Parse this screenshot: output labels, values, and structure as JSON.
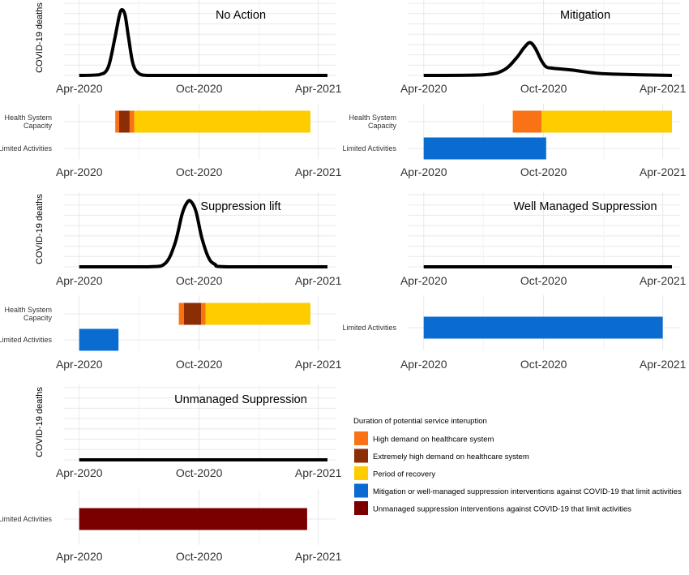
{
  "colors": {
    "high_demand": "#f97316",
    "extremely_high": "#8b2e06",
    "recovery": "#ffcc00",
    "mitigation": "#0a6bd1",
    "unmanaged": "#7a0000",
    "curve": "#000000",
    "grid_major": "#e8e8e8",
    "grid_minor": "#f3f3f3"
  },
  "legend": {
    "title": "Duration of potential service interuption",
    "items": [
      {
        "label": "High demand on healthcare system",
        "color_key": "high_demand"
      },
      {
        "label": "Extremely high demand on healthcare system",
        "color_key": "extremely_high"
      },
      {
        "label": "Period of recovery",
        "color_key": "recovery"
      },
      {
        "label": "Mitigation or well-managed suppression interventions against COVID-19 that limit activities",
        "color_key": "mitigation"
      },
      {
        "label": "Unmanaged suppression interventions against COVID-19 that limit activities",
        "color_key": "unmanaged"
      }
    ]
  },
  "chart_data": [
    {
      "type": "line",
      "title": "No Action",
      "ylabel": "COVID-19 deaths",
      "x_ticks": [
        "Apr-2020",
        "Oct-2020",
        "Apr-2021"
      ],
      "xlim": [
        "2020-03-15",
        "2021-04-15"
      ],
      "ylim": [
        0,
        1.05
      ],
      "x": [
        "2020-04-01",
        "2020-05-01",
        "2020-05-15",
        "2020-05-25",
        "2020-06-01",
        "2020-06-05",
        "2020-06-10",
        "2020-06-15",
        "2020-06-22",
        "2020-07-01",
        "2020-07-15",
        "2020-08-15",
        "2021-04-15"
      ],
      "y": [
        0,
        0.01,
        0.12,
        0.55,
        0.9,
        1.0,
        0.92,
        0.6,
        0.18,
        0.03,
        0,
        0,
        0
      ],
      "timeline": {
        "rows": [
          "Health System Capacity",
          "Limited Activities"
        ],
        "x_ticks": [
          "Apr-2020",
          "Oct-2020",
          "Apr-2021"
        ],
        "segments": [
          {
            "row": "Health System Capacity",
            "start": "2020-05-26",
            "end": "2020-06-01",
            "color_key": "high_demand"
          },
          {
            "row": "Health System Capacity",
            "start": "2020-06-01",
            "end": "2020-06-17",
            "color_key": "extremely_high"
          },
          {
            "row": "Health System Capacity",
            "start": "2020-06-17",
            "end": "2020-06-24",
            "color_key": "high_demand"
          },
          {
            "row": "Health System Capacity",
            "start": "2020-06-24",
            "end": "2021-03-20",
            "color_key": "recovery"
          }
        ]
      }
    },
    {
      "type": "line",
      "title": "Mitigation",
      "ylabel": "",
      "x_ticks": [
        "Apr-2020",
        "Oct-2020",
        "Apr-2021"
      ],
      "xlim": [
        "2020-03-15",
        "2021-04-15"
      ],
      "ylim": [
        0,
        1.05
      ],
      "x": [
        "2020-04-01",
        "2020-07-01",
        "2020-08-01",
        "2020-08-20",
        "2020-09-01",
        "2020-09-10",
        "2020-09-18",
        "2020-09-28",
        "2020-10-05",
        "2020-10-15",
        "2020-11-15",
        "2020-12-15",
        "2021-01-15",
        "2021-04-15"
      ],
      "y": [
        0,
        0.01,
        0.08,
        0.26,
        0.42,
        0.5,
        0.42,
        0.22,
        0.13,
        0.11,
        0.08,
        0.04,
        0.02,
        0
      ],
      "timeline": {
        "rows": [
          "Health System Capacity",
          "Limited Activities"
        ],
        "x_ticks": [
          "Apr-2020",
          "Oct-2020",
          "Apr-2021"
        ],
        "segments": [
          {
            "row": "Health System Capacity",
            "start": "2020-08-15",
            "end": "2020-09-28",
            "color_key": "high_demand"
          },
          {
            "row": "Health System Capacity",
            "start": "2020-09-28",
            "end": "2021-04-15",
            "color_key": "recovery"
          },
          {
            "row": "Limited Activities",
            "start": "2020-04-01",
            "end": "2020-10-05",
            "color_key": "mitigation"
          }
        ]
      }
    },
    {
      "type": "line",
      "title": "Suppression lift",
      "ylabel": "COVID-19 deaths",
      "x_ticks": [
        "Apr-2020",
        "Oct-2020",
        "Apr-2021"
      ],
      "xlim": [
        "2020-03-15",
        "2021-04-15"
      ],
      "ylim": [
        0,
        1.05
      ],
      "x": [
        "2020-04-01",
        "2020-07-15",
        "2020-08-10",
        "2020-08-25",
        "2020-09-05",
        "2020-09-12",
        "2020-09-18",
        "2020-09-26",
        "2020-10-05",
        "2020-10-15",
        "2020-10-25",
        "2020-11-15",
        "2021-04-15"
      ],
      "y": [
        0,
        0,
        0.05,
        0.35,
        0.8,
        0.97,
        1.0,
        0.85,
        0.45,
        0.15,
        0.04,
        0,
        0
      ],
      "timeline": {
        "rows": [
          "Health System Capacity",
          "Limited Activities"
        ],
        "x_ticks": [
          "Apr-2020",
          "Oct-2020",
          "Apr-2021"
        ],
        "segments": [
          {
            "row": "Health System Capacity",
            "start": "2020-08-31",
            "end": "2020-09-08",
            "color_key": "high_demand"
          },
          {
            "row": "Health System Capacity",
            "start": "2020-09-08",
            "end": "2020-10-04",
            "color_key": "extremely_high"
          },
          {
            "row": "Health System Capacity",
            "start": "2020-10-04",
            "end": "2020-10-11",
            "color_key": "high_demand"
          },
          {
            "row": "Health System Capacity",
            "start": "2020-10-11",
            "end": "2021-03-20",
            "color_key": "recovery"
          },
          {
            "row": "Limited Activities",
            "start": "2020-04-01",
            "end": "2020-05-31",
            "color_key": "mitigation"
          }
        ]
      }
    },
    {
      "type": "line",
      "title": "Well Managed Suppression",
      "ylabel": "",
      "x_ticks": [
        "Apr-2020",
        "Oct-2020",
        "Apr-2021"
      ],
      "xlim": [
        "2020-03-15",
        "2021-04-15"
      ],
      "ylim": [
        0,
        1.05
      ],
      "x": [
        "2020-04-01",
        "2021-04-15"
      ],
      "y": [
        0,
        0
      ],
      "timeline": {
        "rows": [
          "Limited Activities"
        ],
        "x_ticks": [
          "Apr-2020",
          "Oct-2020",
          "Apr-2021"
        ],
        "segments": [
          {
            "row": "Limited Activities",
            "start": "2020-04-01",
            "end": "2021-04-01",
            "color_key": "mitigation"
          }
        ]
      }
    },
    {
      "type": "line",
      "title": "Unmanaged Suppression",
      "ylabel": "COVID-19 deaths",
      "x_ticks": [
        "Apr-2020",
        "Oct-2020",
        "Apr-2021"
      ],
      "xlim": [
        "2020-03-15",
        "2021-04-15"
      ],
      "ylim": [
        0,
        1.05
      ],
      "x": [
        "2020-04-01",
        "2021-04-15"
      ],
      "y": [
        0,
        0
      ],
      "timeline": {
        "rows": [
          "Limited Activities"
        ],
        "x_ticks": [
          "Apr-2020",
          "Oct-2020",
          "Apr-2021"
        ],
        "segments": [
          {
            "row": "Limited Activities",
            "start": "2020-04-01",
            "end": "2021-03-15",
            "color_key": "unmanaged"
          }
        ]
      }
    }
  ]
}
